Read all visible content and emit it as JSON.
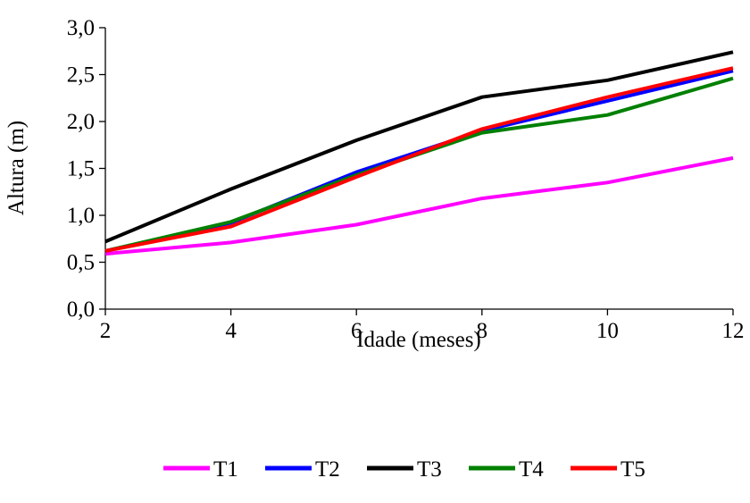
{
  "chart_data": {
    "type": "line",
    "title": "",
    "xlabel": "Idade (meses)",
    "ylabel": "Altura (m)",
    "x": [
      2,
      4,
      6,
      8,
      10,
      12
    ],
    "x_tick_labels": [
      "2",
      "4",
      "6",
      "8",
      "10",
      "12"
    ],
    "y_tick_values": [
      0,
      0.5,
      1,
      1.5,
      2,
      2.5,
      3
    ],
    "y_tick_labels": [
      "0,0",
      "0,5",
      "1,0",
      "1,5",
      "2,0",
      "2,5",
      "3,0"
    ],
    "xlim": [
      2,
      12
    ],
    "ylim": [
      0,
      3
    ],
    "grid": false,
    "legend_position": "bottom",
    "series": [
      {
        "name": "T1",
        "color": "#ff00ff",
        "values": [
          0.59,
          0.71,
          0.9,
          1.18,
          1.35,
          1.61
        ]
      },
      {
        "name": "T2",
        "color": "#0000ff",
        "values": [
          0.62,
          0.92,
          1.46,
          1.9,
          2.22,
          2.54
        ]
      },
      {
        "name": "T3",
        "color": "#000000",
        "values": [
          0.72,
          1.28,
          1.8,
          2.26,
          2.44,
          2.74
        ]
      },
      {
        "name": "T4",
        "color": "#008000",
        "values": [
          0.62,
          0.93,
          1.43,
          1.88,
          2.07,
          2.46
        ]
      },
      {
        "name": "T5",
        "color": "#ff0000",
        "values": [
          0.62,
          0.88,
          1.41,
          1.92,
          2.26,
          2.57
        ]
      }
    ]
  }
}
